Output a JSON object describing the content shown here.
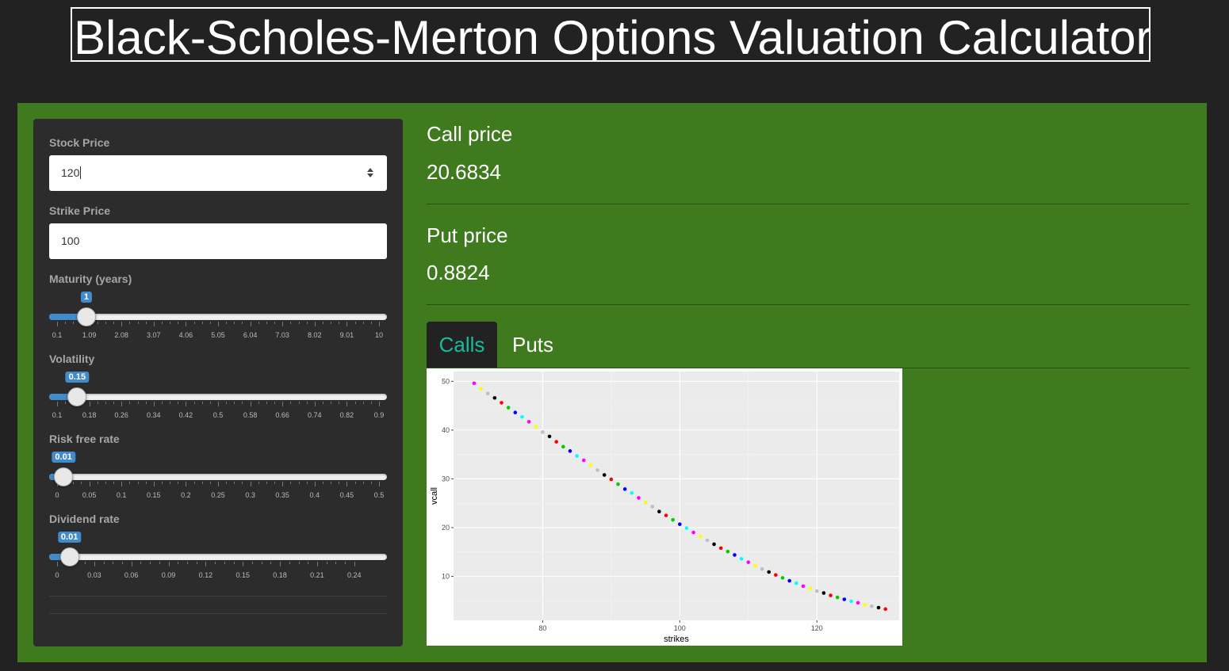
{
  "header": {
    "title": "Black-Scholes-Merton Options Valuation Calculator"
  },
  "sidebar": {
    "stock_price": {
      "label": "Stock Price",
      "value": "120"
    },
    "strike_price": {
      "label": "Strike Price",
      "value": "100"
    },
    "maturity": {
      "label": "Maturity (years)",
      "value": "1",
      "min": 0.1,
      "max": 10,
      "ticks": [
        "0.1",
        "1.09",
        "2.08",
        "3.07",
        "4.06",
        "5.05",
        "6.04",
        "7.03",
        "8.02",
        "9.01",
        "10"
      ]
    },
    "volatility": {
      "label": "Volatility",
      "value": "0.15",
      "min": 0.1,
      "max": 0.9,
      "ticks": [
        "0.1",
        "0.18",
        "0.26",
        "0.34",
        "0.42",
        "0.5",
        "0.58",
        "0.66",
        "0.74",
        "0.82",
        "0.9"
      ]
    },
    "risk_free": {
      "label": "Risk free rate",
      "value": "0.01",
      "min": 0,
      "max": 0.5,
      "ticks": [
        "0",
        "0.05",
        "0.1",
        "0.15",
        "0.2",
        "0.25",
        "0.3",
        "0.35",
        "0.4",
        "0.45",
        "0.5"
      ]
    },
    "dividend": {
      "label": "Dividend rate",
      "value": "0.01",
      "min": 0,
      "max": 0.26,
      "ticks": [
        "0",
        "0.03",
        "0.06",
        "0.09",
        "0.12",
        "0.15",
        "0.18",
        "0.21",
        "0.24"
      ]
    }
  },
  "results": {
    "call_label": "Call price",
    "call_value": "20.6834",
    "put_label": "Put price",
    "put_value": "0.8824"
  },
  "tabs": [
    {
      "label": "Calls",
      "active": true
    },
    {
      "label": "Puts",
      "active": false
    }
  ],
  "colors": {
    "accent": "#18bc9c",
    "panel_green": "#3f7a1e",
    "slider_blue": "#428bca",
    "point_cycle": [
      "#ff00ff",
      "#ffff00",
      "#bebebe",
      "#000000",
      "#ff0000",
      "#00cd00",
      "#0000ff",
      "#00ffff"
    ]
  },
  "chart_data": {
    "type": "scatter",
    "xlabel": "strikes",
    "ylabel": "vcall",
    "xticks": [
      80,
      100,
      120
    ],
    "yticks": [
      10,
      20,
      30,
      40,
      50
    ],
    "xlim": [
      67,
      132
    ],
    "ylim": [
      1,
      52
    ],
    "x": [
      70,
      71,
      72,
      73,
      74,
      75,
      76,
      77,
      78,
      79,
      80,
      81,
      82,
      83,
      84,
      85,
      86,
      87,
      88,
      89,
      90,
      91,
      92,
      93,
      94,
      95,
      96,
      97,
      98,
      99,
      100,
      101,
      102,
      103,
      104,
      105,
      106,
      107,
      108,
      109,
      110,
      111,
      112,
      113,
      114,
      115,
      116,
      117,
      118,
      119,
      120,
      121,
      122,
      123,
      124,
      125,
      126,
      127,
      128,
      129,
      130
    ],
    "y": [
      49.6,
      48.5,
      47.5,
      46.6,
      45.6,
      44.6,
      43.6,
      42.7,
      41.7,
      40.7,
      39.6,
      38.7,
      37.6,
      36.6,
      35.7,
      34.7,
      33.8,
      32.8,
      31.8,
      30.8,
      29.9,
      28.9,
      27.9,
      27.1,
      26.1,
      25.2,
      24.3,
      23.3,
      22.5,
      21.6,
      20.7,
      19.9,
      19.0,
      18.2,
      17.4,
      16.6,
      15.8,
      15.1,
      14.4,
      13.6,
      12.9,
      12.2,
      11.5,
      10.9,
      10.3,
      9.7,
      9.1,
      8.6,
      8.0,
      7.5,
      7.0,
      6.6,
      6.1,
      5.7,
      5.3,
      4.9,
      4.6,
      4.2,
      3.9,
      3.6,
      3.3
    ]
  }
}
